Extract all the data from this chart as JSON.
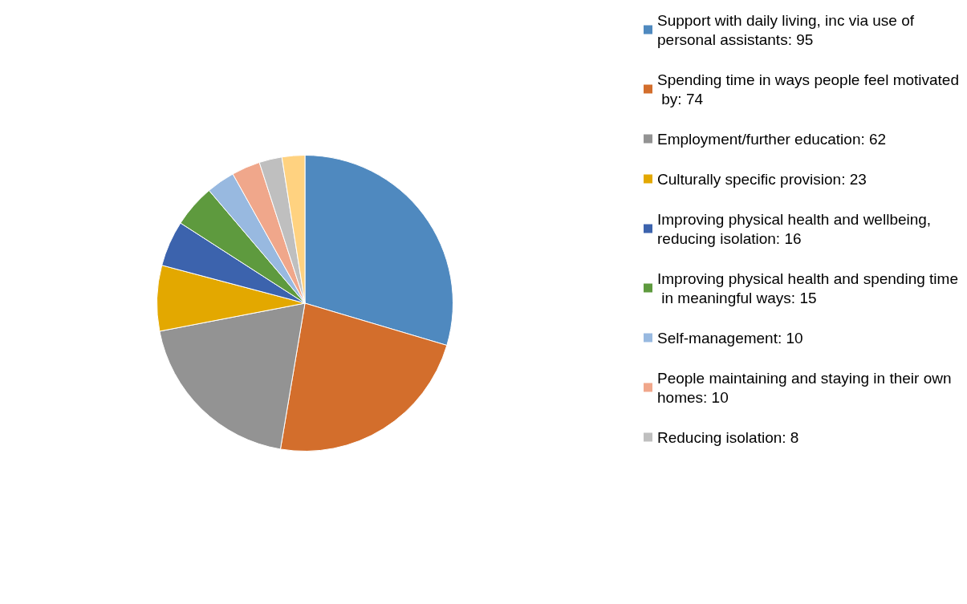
{
  "chart_data": {
    "type": "pie",
    "categories": [
      "Support with daily living, inc via use of personal assistants: 95",
      "Spending time in ways people feel motivated by: 74",
      "Employment/further education: 62",
      "Culturally specific provision: 23",
      "Improving physical health and wellbeing, reducing isolation: 16",
      "Improving physical health and spending time in meaningful ways: 15",
      "Self-management: 10",
      "People maintaining and staying in their own homes: 10",
      "Reducing isolation: 8",
      null
    ],
    "values": [
      95,
      74,
      62,
      23,
      16,
      15,
      10,
      10,
      8,
      8
    ],
    "colors": [
      "#4f89bf",
      "#d36e2c",
      "#939393",
      "#e3a800",
      "#3c63ad",
      "#5e9a3e",
      "#98b9e0",
      "#f0a78b",
      "#bfbfbf",
      "#ffd280"
    ],
    "legend": "right"
  }
}
